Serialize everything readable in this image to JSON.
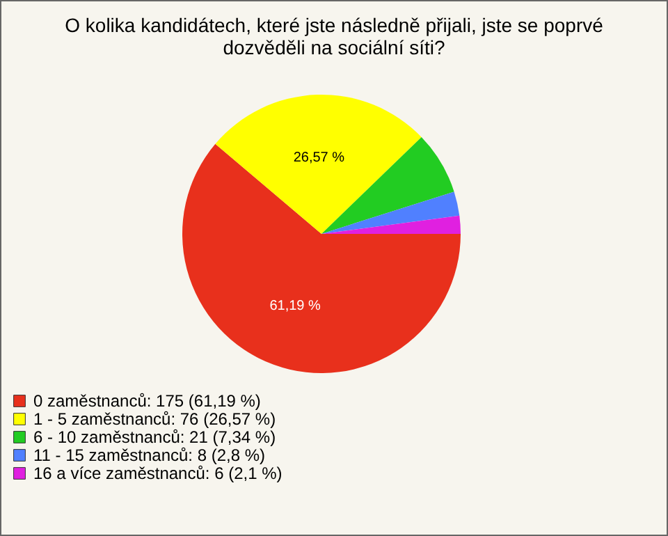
{
  "chart_data": {
    "type": "pie",
    "title": "O kolika kandidátech, které jste následně přijali, jste se poprvé dozvěděli na sociální síti?",
    "categories": [
      "0 zaměstnanců: 175 (61,19 %)",
      "1 - 5 zaměstnanců: 76 (26,57 %)",
      "6 - 10 zaměstnanců: 21 (7,34 %)",
      "11 - 15 zaměstnanců: 8 (2,8 %)",
      "16 a více zaměstnanců: 6 (2,1 %)"
    ],
    "values": [
      61.19,
      26.57,
      7.34,
      2.8,
      2.1
    ],
    "colors": [
      "#e8301c",
      "#ffff00",
      "#22cc22",
      "#5080ff",
      "#e020e0"
    ],
    "value_labels": [
      "61,19 %",
      "26,57 %",
      null,
      null,
      null
    ],
    "legend": "bottom left"
  }
}
